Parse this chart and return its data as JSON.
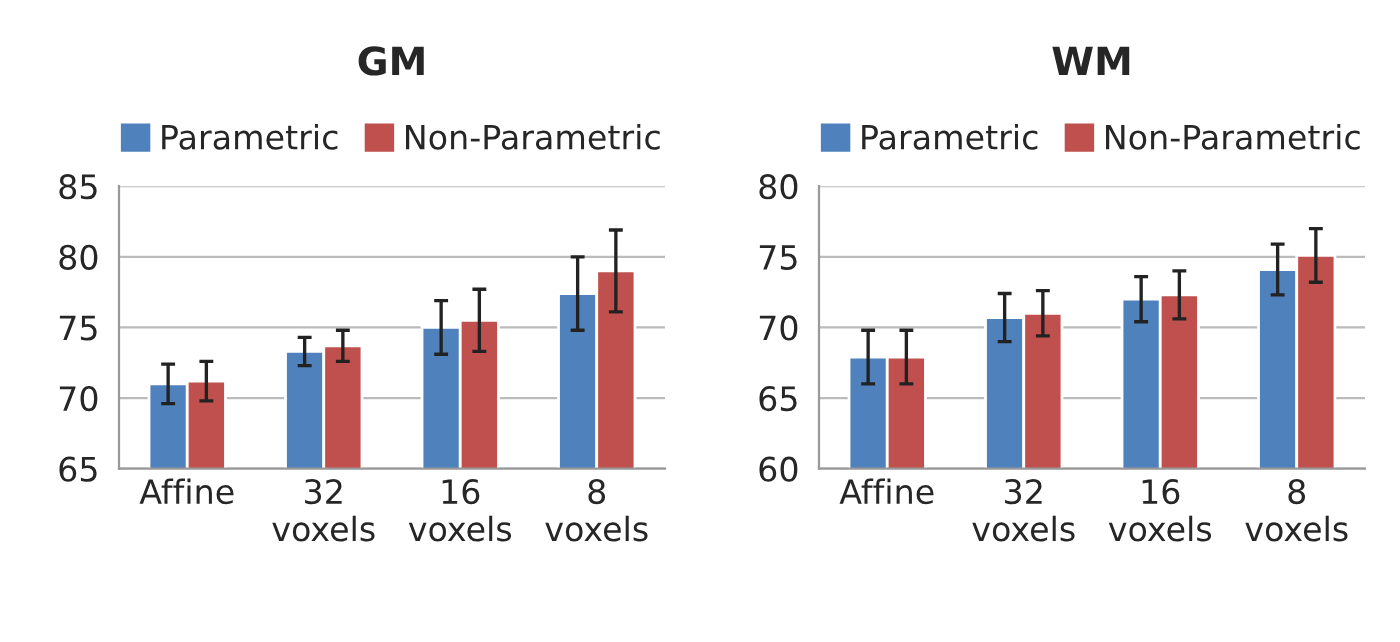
{
  "chart_data": [
    {
      "type": "bar",
      "title": "GM",
      "categories": [
        "Affine",
        "32\nvoxels",
        "16\nvoxels",
        "8\nvoxels"
      ],
      "series": [
        {
          "name": "Parametric",
          "color": "#4f81bd",
          "values": [
            71.0,
            73.3,
            75.0,
            77.4
          ],
          "errors": [
            1.4,
            1.0,
            1.9,
            2.6
          ]
        },
        {
          "name": "Non-Parametric",
          "color": "#c0504d",
          "values": [
            71.2,
            73.7,
            75.5,
            79.0
          ],
          "errors": [
            1.4,
            1.1,
            2.2,
            2.9
          ]
        }
      ],
      "ylim": [
        65,
        85
      ],
      "yticks": [
        65,
        70,
        75,
        80,
        85
      ],
      "grid": "y",
      "legend": "top"
    },
    {
      "type": "bar",
      "title": "WM",
      "categories": [
        "Affine",
        "32\nvoxels",
        "16\nvoxels",
        "8\nvoxels"
      ],
      "series": [
        {
          "name": "Parametric",
          "color": "#4f81bd",
          "values": [
            67.9,
            70.7,
            72.0,
            74.1
          ],
          "errors": [
            1.9,
            1.7,
            1.6,
            1.8
          ]
        },
        {
          "name": "Non-Parametric",
          "color": "#c0504d",
          "values": [
            67.9,
            71.0,
            72.3,
            75.1
          ],
          "errors": [
            1.9,
            1.6,
            1.7,
            1.9
          ]
        }
      ],
      "ylim": [
        60,
        80
      ],
      "yticks": [
        60,
        65,
        70,
        75,
        80
      ],
      "grid": "y",
      "legend": "top"
    }
  ]
}
